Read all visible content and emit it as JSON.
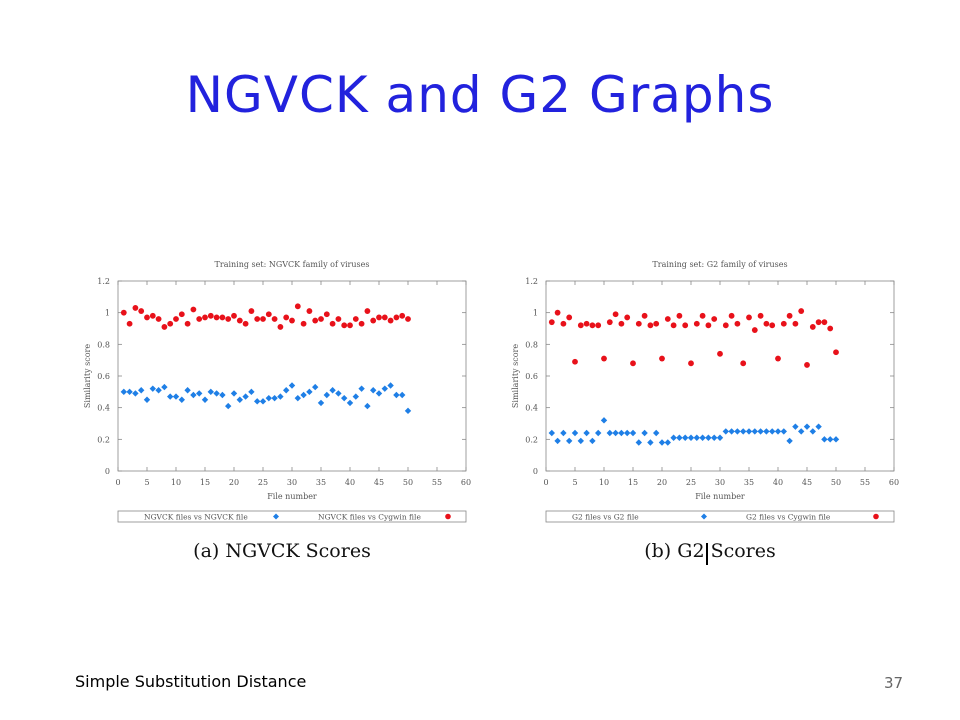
{
  "slide": {
    "title": "NGVCK and G2 Graphs",
    "footer_left": "Simple Substitution Distance",
    "page_number": "37"
  },
  "colors": {
    "title": "#2222dd",
    "blue_series": "#1f7fe6",
    "red_series": "#e8111a"
  },
  "chart_data": [
    {
      "type": "scatter",
      "title": "Training set: NGVCK family of viruses",
      "caption": "(a) NGVCK Scores",
      "xlabel": "File number",
      "ylabel": "Similarity score",
      "xlim": [
        0,
        60
      ],
      "ylim": [
        0,
        1.2
      ],
      "xticks": [
        "0",
        "5",
        "10",
        "15",
        "20",
        "25",
        "30",
        "35",
        "40",
        "45",
        "50",
        "55",
        "60"
      ],
      "yticks": [
        "0",
        "0.2",
        "0.4",
        "0.6",
        "0.8",
        "1",
        "1.2"
      ],
      "grid": false,
      "legend_position": "bottom",
      "series": [
        {
          "name": "NGVCK files vs NGVCK file",
          "marker": "diamond",
          "color": "#1f7fe6",
          "x": [
            1,
            2,
            3,
            4,
            5,
            6,
            7,
            8,
            9,
            10,
            11,
            12,
            13,
            14,
            15,
            16,
            17,
            18,
            19,
            20,
            21,
            22,
            23,
            24,
            25,
            26,
            27,
            28,
            29,
            30,
            31,
            32,
            33,
            34,
            35,
            36,
            37,
            38,
            39,
            40,
            41,
            42,
            43,
            44,
            45,
            46,
            47,
            48,
            49,
            50
          ],
          "y": [
            0.5,
            0.5,
            0.49,
            0.51,
            0.45,
            0.52,
            0.51,
            0.53,
            0.47,
            0.47,
            0.45,
            0.51,
            0.48,
            0.49,
            0.45,
            0.5,
            0.49,
            0.48,
            0.41,
            0.49,
            0.45,
            0.47,
            0.5,
            0.44,
            0.44,
            0.46,
            0.46,
            0.47,
            0.51,
            0.54,
            0.46,
            0.48,
            0.5,
            0.53,
            0.43,
            0.48,
            0.51,
            0.49,
            0.46,
            0.43,
            0.47,
            0.52,
            0.41,
            0.51,
            0.49,
            0.52,
            0.54,
            0.48,
            0.48,
            0.38
          ]
        },
        {
          "name": "NGVCK files vs Cygwin file",
          "marker": "circle",
          "color": "#e8111a",
          "x": [
            1,
            2,
            3,
            4,
            5,
            6,
            7,
            8,
            9,
            10,
            11,
            12,
            13,
            14,
            15,
            16,
            17,
            18,
            19,
            20,
            21,
            22,
            23,
            24,
            25,
            26,
            27,
            28,
            29,
            30,
            31,
            32,
            33,
            34,
            35,
            36,
            37,
            38,
            39,
            40,
            41,
            42,
            43,
            44,
            45,
            46,
            47,
            48,
            49,
            50
          ],
          "y": [
            1.0,
            0.93,
            1.03,
            1.01,
            0.97,
            0.98,
            0.96,
            0.91,
            0.93,
            0.96,
            0.99,
            0.93,
            1.02,
            0.96,
            0.97,
            0.98,
            0.97,
            0.97,
            0.96,
            0.98,
            0.95,
            0.93,
            1.01,
            0.96,
            0.96,
            0.99,
            0.96,
            0.91,
            0.97,
            0.95,
            1.04,
            0.93,
            1.01,
            0.95,
            0.96,
            0.99,
            0.93,
            0.96,
            0.92,
            0.92,
            0.96,
            0.93,
            1.01,
            0.95,
            0.97,
            0.97,
            0.95,
            0.97,
            0.98,
            0.96
          ]
        }
      ]
    },
    {
      "type": "scatter",
      "title": "Training set: G2 family of viruses",
      "caption": "(b) G2 Scores",
      "xlabel": "File number",
      "ylabel": "Similarity score",
      "xlim": [
        0,
        60
      ],
      "ylim": [
        0,
        1.2
      ],
      "xticks": [
        "0",
        "5",
        "10",
        "15",
        "20",
        "25",
        "30",
        "35",
        "40",
        "45",
        "50",
        "55",
        "60"
      ],
      "yticks": [
        "0",
        "0.2",
        "0.4",
        "0.6",
        "0.8",
        "1",
        "1.2"
      ],
      "grid": false,
      "legend_position": "bottom",
      "series": [
        {
          "name": "G2 files vs G2 file",
          "marker": "diamond",
          "color": "#1f7fe6",
          "x": [
            1,
            2,
            3,
            4,
            5,
            6,
            7,
            8,
            9,
            10,
            11,
            12,
            13,
            14,
            15,
            16,
            17,
            18,
            19,
            20,
            21,
            22,
            23,
            24,
            25,
            26,
            27,
            28,
            29,
            30,
            31,
            32,
            33,
            34,
            35,
            36,
            37,
            38,
            39,
            40,
            41,
            42,
            43,
            44,
            45,
            46,
            47,
            48,
            49,
            50
          ],
          "y": [
            0.24,
            0.19,
            0.24,
            0.19,
            0.24,
            0.19,
            0.24,
            0.19,
            0.24,
            0.32,
            0.24,
            0.24,
            0.24,
            0.24,
            0.24,
            0.18,
            0.24,
            0.18,
            0.24,
            0.18,
            0.18,
            0.21,
            0.21,
            0.21,
            0.21,
            0.21,
            0.21,
            0.21,
            0.21,
            0.21,
            0.25,
            0.25,
            0.25,
            0.25,
            0.25,
            0.25,
            0.25,
            0.25,
            0.25,
            0.25,
            0.25,
            0.19,
            0.28,
            0.25,
            0.28,
            0.25,
            0.28,
            0.2,
            0.2,
            0.2
          ]
        },
        {
          "name": "G2 files vs Cygwin file",
          "marker": "circle",
          "color": "#e8111a",
          "x": [
            1,
            2,
            3,
            4,
            5,
            6,
            7,
            8,
            9,
            10,
            11,
            12,
            13,
            14,
            15,
            16,
            17,
            18,
            19,
            20,
            21,
            22,
            23,
            24,
            25,
            26,
            27,
            28,
            29,
            30,
            31,
            32,
            33,
            34,
            35,
            36,
            37,
            38,
            39,
            40,
            41,
            42,
            43,
            44,
            45,
            46,
            47,
            48,
            49,
            50
          ],
          "y": [
            0.94,
            1.0,
            0.93,
            0.97,
            0.69,
            0.92,
            0.93,
            0.92,
            0.92,
            0.71,
            0.94,
            0.99,
            0.93,
            0.97,
            0.68,
            0.93,
            0.98,
            0.92,
            0.93,
            0.71,
            0.96,
            0.92,
            0.98,
            0.92,
            0.68,
            0.93,
            0.98,
            0.92,
            0.96,
            0.74,
            0.92,
            0.98,
            0.93,
            0.68,
            0.97,
            0.89,
            0.98,
            0.93,
            0.92,
            0.71,
            0.93,
            0.98,
            0.93,
            1.01,
            0.67,
            0.91,
            0.94,
            0.94,
            0.9,
            0.75
          ]
        }
      ]
    }
  ]
}
